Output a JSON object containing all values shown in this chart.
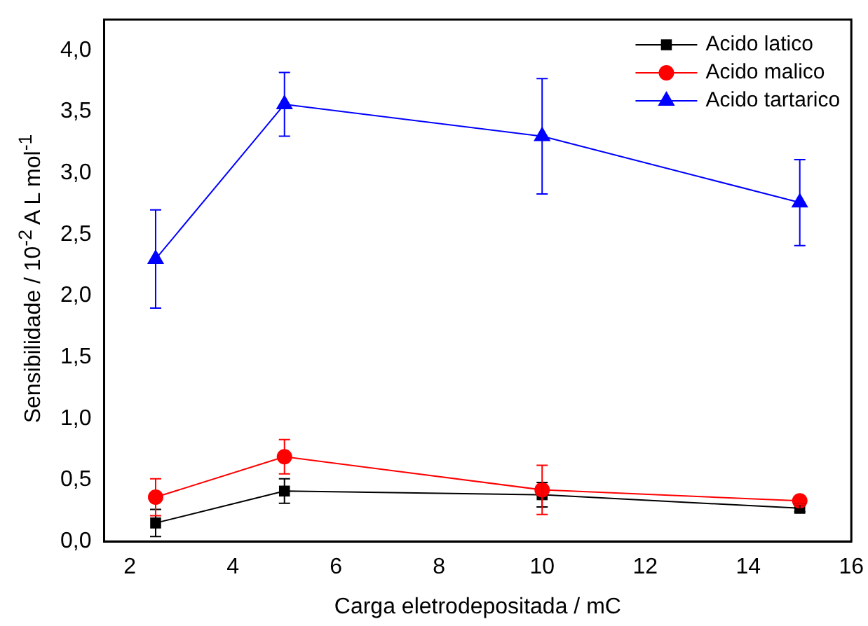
{
  "chart_data": {
    "type": "line",
    "xlabel": "Carga eletrodepositada / mC",
    "ylabel": "Sensibilidade / 10$^{-2}$ A L mol$^{-1}$",
    "x": [
      2.5,
      5,
      10,
      15
    ],
    "series": [
      {
        "name": "Acido latico",
        "color": "#000000",
        "marker": "square",
        "values": [
          0.15,
          0.41,
          0.38,
          0.27
        ],
        "errors": [
          0.11,
          0.1,
          0.1,
          0.03
        ]
      },
      {
        "name": "Acido malico",
        "color": "#ff0000",
        "marker": "circle",
        "values": [
          0.36,
          0.69,
          0.42,
          0.33
        ],
        "errors": [
          0.15,
          0.14,
          0.2,
          0.03
        ]
      },
      {
        "name": "Acido tartarico",
        "color": "#0000ff",
        "marker": "triangle",
        "values": [
          2.3,
          3.56,
          3.3,
          2.76
        ],
        "errors": [
          0.4,
          0.26,
          0.47,
          0.35
        ]
      }
    ],
    "xlim": [
      1.5,
      16
    ],
    "xticks": [
      2,
      4,
      6,
      8,
      10,
      12,
      14,
      16
    ],
    "ylim": [
      0,
      4.25
    ],
    "yticks": [
      {
        "value": 0,
        "label": "0,0"
      },
      {
        "value": 0.5,
        "label": "0,5"
      },
      {
        "value": 1,
        "label": "1,0"
      },
      {
        "value": 1.5,
        "label": "1,5"
      },
      {
        "value": 2,
        "label": "2,0"
      },
      {
        "value": 2.5,
        "label": "2,5"
      },
      {
        "value": 3,
        "label": "3,0"
      },
      {
        "value": 3.5,
        "label": "3,5"
      },
      {
        "value": 4,
        "label": "4,0"
      }
    ],
    "grid": false,
    "legend": "top right",
    "line_style": "solid"
  }
}
